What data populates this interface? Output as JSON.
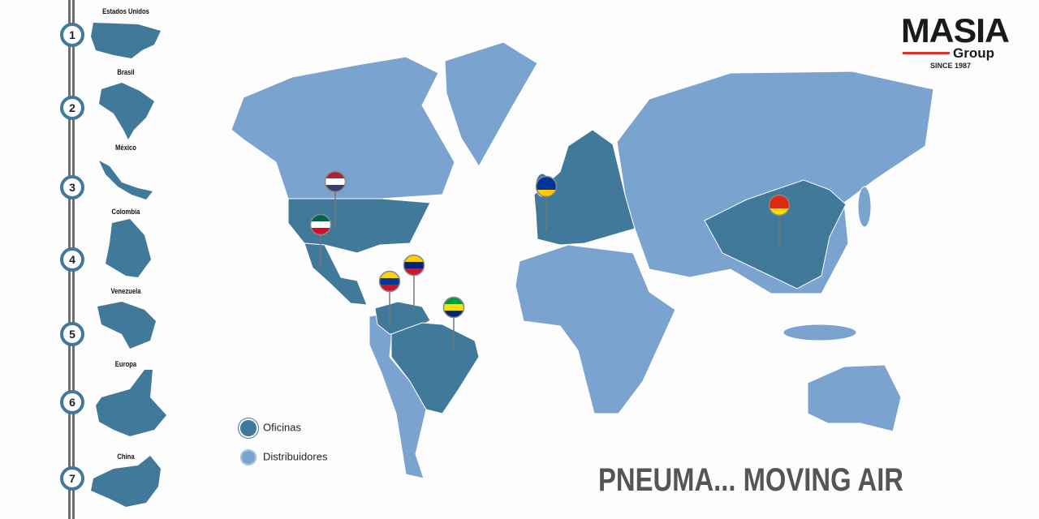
{
  "sidebar": {
    "items": [
      {
        "number": "1",
        "label": "Estados Unidos"
      },
      {
        "number": "2",
        "label": "Brasil"
      },
      {
        "number": "3",
        "label": "México"
      },
      {
        "number": "4",
        "label": "Colombia"
      },
      {
        "number": "5",
        "label": "Venezuela"
      },
      {
        "number": "6",
        "label": "Europa"
      },
      {
        "number": "7",
        "label": "China"
      }
    ]
  },
  "logo": {
    "name": "MASIA",
    "sub": "Group",
    "since": "SINCE 1987",
    "accent": "#e0302a"
  },
  "legend": [
    {
      "label": "Oficinas",
      "color": "#41799a"
    },
    {
      "label": "Distribuidores",
      "color": "#7aa3cf"
    }
  ],
  "tagline": "PNEUMA... MOVING AIR",
  "map": {
    "office_color": "#41799a",
    "distributor_color": "#7aa3cf",
    "pins": [
      "usa-flag",
      "mexico-flag",
      "colombia-flag",
      "venezuela-flag",
      "brazil-flag",
      "eu-flag",
      "china-flag"
    ]
  }
}
